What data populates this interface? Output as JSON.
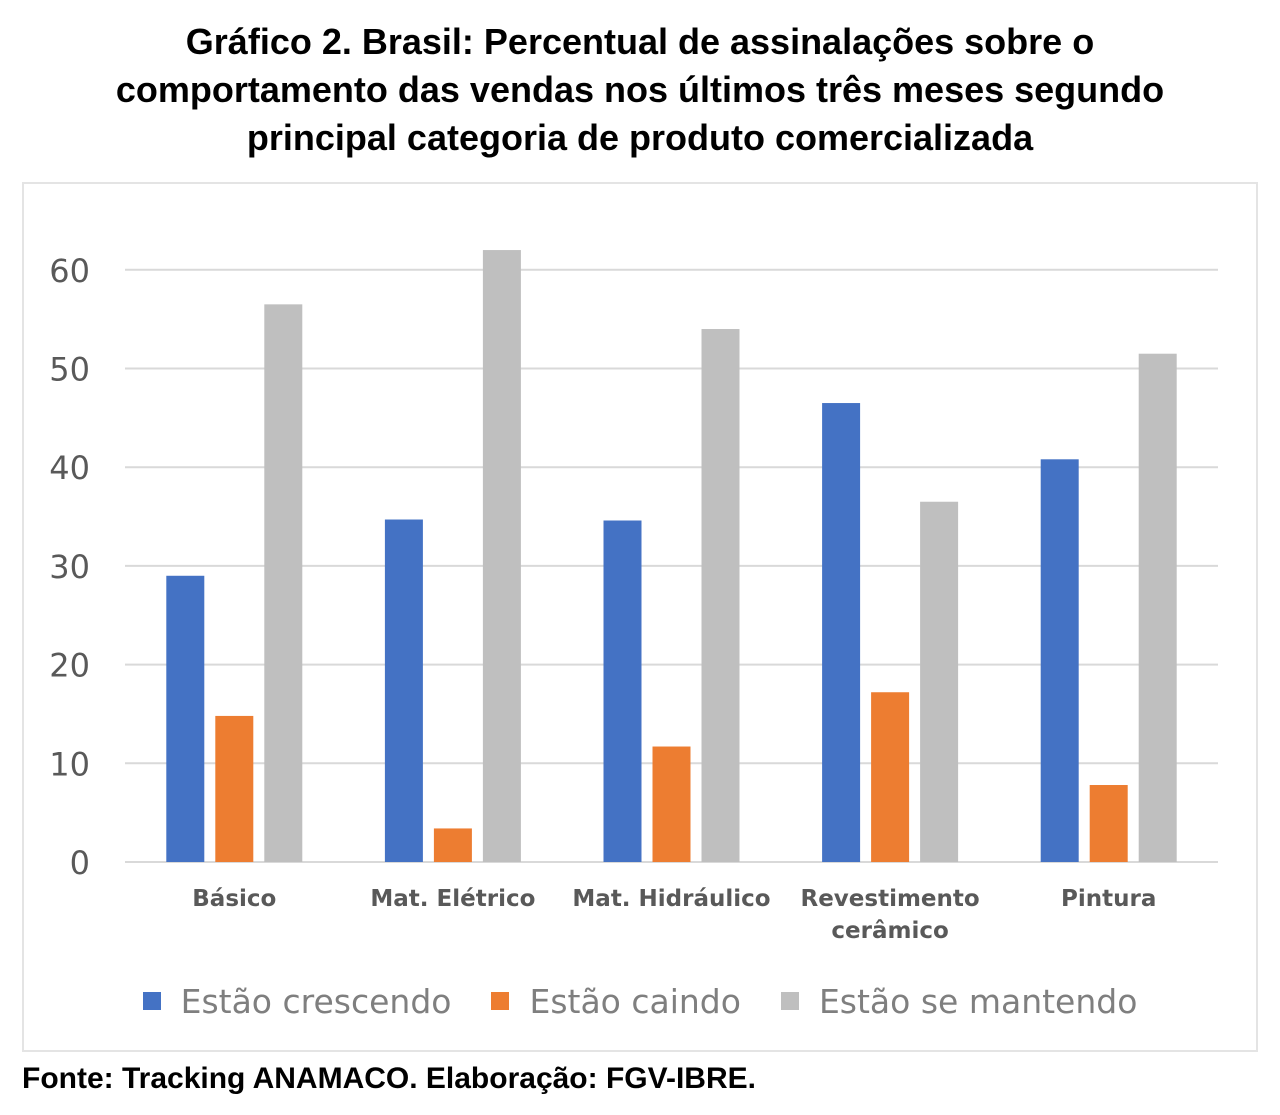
{
  "title_lines": [
    "Gráfico 2. Brasil: Percentual de assinalações sobre o",
    "comportamento das vendas nos últimos três meses segundo",
    "principal categoria de produto comercializada"
  ],
  "source": "Fonte: Tracking ANAMACO. Elaboração: FGV-IBRE.",
  "chart_data": {
    "type": "bar",
    "title": "Gráfico 2. Brasil: Percentual de assinalações sobre o comportamento das vendas nos últimos três meses segundo principal categoria de produto comercializada",
    "categories": [
      [
        "Básico"
      ],
      [
        "Mat. Elétrico"
      ],
      [
        "Mat. Hidráulico"
      ],
      [
        "Revestimento",
        "cerâmico"
      ],
      [
        "Pintura"
      ]
    ],
    "series": [
      {
        "name": "Estão crescendo",
        "color": "#4472c4",
        "values": [
          29.0,
          34.7,
          34.6,
          46.5,
          40.8
        ]
      },
      {
        "name": "Estão caindo",
        "color": "#ed7d31",
        "values": [
          14.8,
          3.4,
          11.7,
          17.2,
          7.8
        ]
      },
      {
        "name": "Estão se mantendo",
        "color": "#bfbfbf",
        "values": [
          56.5,
          62.0,
          54.0,
          36.5,
          51.5
        ]
      }
    ],
    "yticks": [
      0,
      10,
      20,
      30,
      40,
      50,
      60
    ],
    "ylim": [
      0,
      63
    ],
    "xlabel": "",
    "ylabel": "",
    "grid": true,
    "legend": "bottom"
  }
}
